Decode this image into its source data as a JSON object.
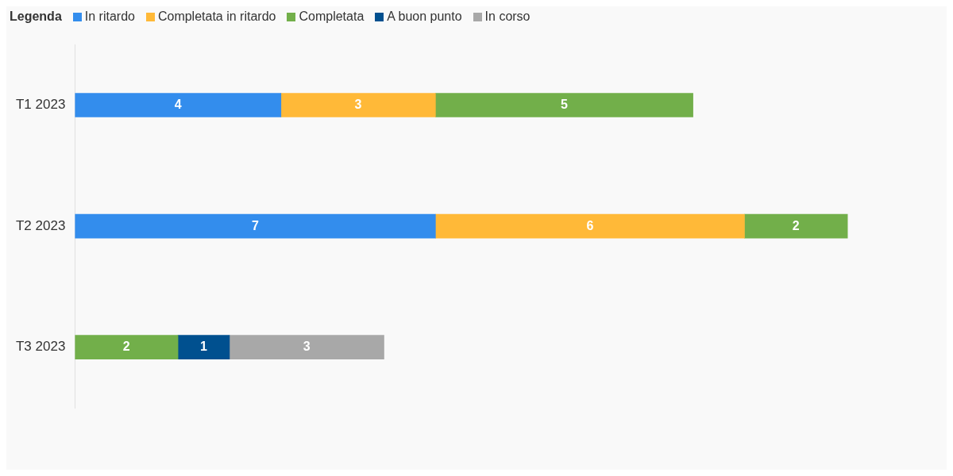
{
  "chart_data": {
    "type": "bar",
    "orientation": "horizontal",
    "stacked": true,
    "data_labels": true,
    "legend": "top left",
    "legend_title": "Legenda",
    "grid": false,
    "categories": [
      "T1 2023",
      "T2 2023",
      "T3 2023"
    ],
    "series": [
      {
        "name": "In ritardo",
        "color": "#338ded",
        "values": [
          4,
          7,
          null
        ]
      },
      {
        "name": "Completata in ritardo",
        "color": "#ffb938",
        "values": [
          3,
          6,
          null
        ]
      },
      {
        "name": "Completata",
        "color": "#72af4a",
        "values": [
          5,
          2,
          2
        ]
      },
      {
        "name": "A buon punto",
        "color": "#00508f",
        "values": [
          null,
          null,
          1
        ]
      },
      {
        "name": "In corso",
        "color": "#a8a8a8",
        "values": [
          null,
          null,
          3
        ]
      }
    ]
  }
}
